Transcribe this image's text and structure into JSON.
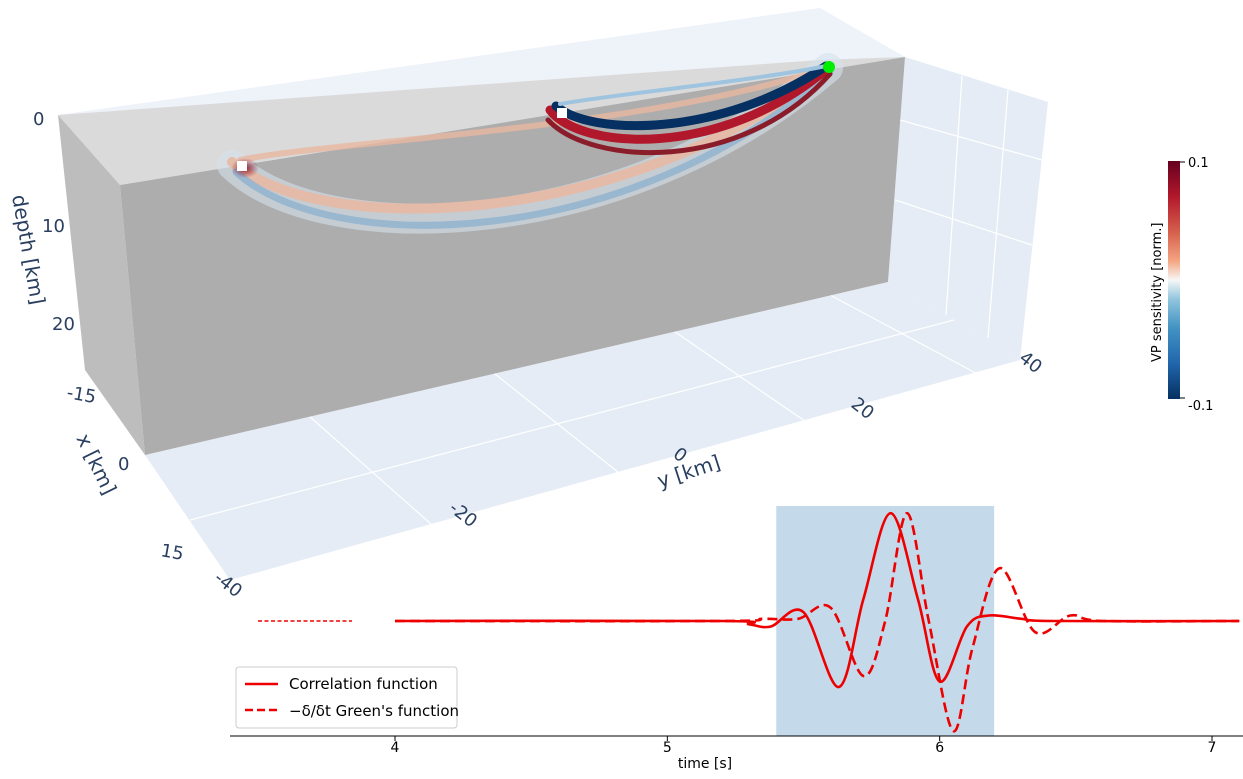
{
  "chart_data": [
    {
      "type": "surface3d",
      "axes": {
        "depth": {
          "label": "depth [km]",
          "ticks": [
            "0",
            "10",
            "20"
          ]
        },
        "x": {
          "label": "x [km]",
          "ticks": [
            "-15",
            "0",
            "15"
          ]
        },
        "y": {
          "label": "y [km]",
          "ticks": [
            "-40",
            "-20",
            "0",
            "20",
            "40"
          ]
        }
      },
      "colorbar": {
        "label": "VP sensitivity [norm.]",
        "ticks": [
          "0.1",
          "-0.1"
        ],
        "colors": {
          "max": "#67001f",
          "mid": "#f7f7f7",
          "min": "#053061"
        }
      },
      "markers": {
        "source_color": "#00ee00",
        "receiver_color": "#ffffff"
      }
    },
    {
      "type": "line",
      "xlabel": "time [s]",
      "xticks": [
        4,
        5,
        6,
        7
      ],
      "xlim": [
        3.45,
        7.1
      ],
      "highlight_window": [
        5.4,
        6.2
      ],
      "series": [
        {
          "name": "Correlation function",
          "style": "solid",
          "color": "#ee0000",
          "x": [
            4.0,
            5.2,
            5.3,
            5.38,
            5.5,
            5.63,
            5.72,
            5.82,
            5.92,
            6.0,
            6.1,
            6.18,
            6.3,
            6.42,
            7.1
          ],
          "y": [
            0.0,
            0.0,
            -0.03,
            -0.05,
            0.08,
            -0.6,
            0.2,
            0.98,
            0.2,
            -0.55,
            -0.05,
            0.05,
            0.02,
            0.0,
            0.0
          ]
        },
        {
          "name": "−δ/δt Green's function",
          "style": "dashed",
          "color": "#ee0000",
          "x": [
            4.0,
            5.2,
            5.35,
            5.48,
            5.6,
            5.72,
            5.8,
            5.88,
            5.96,
            6.05,
            6.12,
            6.22,
            6.35,
            6.48,
            6.6,
            7.1
          ],
          "y": [
            0.0,
            0.0,
            0.02,
            0.02,
            0.12,
            -0.5,
            0.0,
            0.98,
            0.0,
            -1.0,
            -0.25,
            0.48,
            -0.1,
            0.05,
            0.0,
            0.0
          ]
        }
      ]
    }
  ]
}
